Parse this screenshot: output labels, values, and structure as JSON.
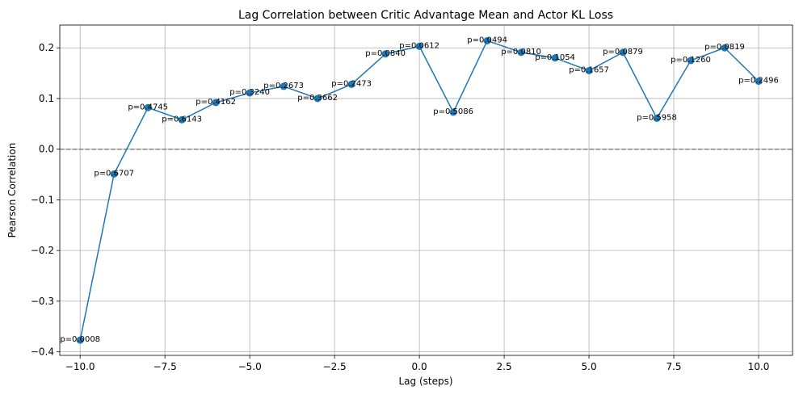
{
  "chart_data": {
    "type": "line",
    "title": "Lag Correlation between Critic Advantage Mean and Actor KL Loss",
    "xlabel": "Lag (steps)",
    "ylabel": "Pearson Correlation",
    "xlim": [
      -10.6,
      11.0
    ],
    "ylim": [
      -0.407,
      0.245
    ],
    "xticks": [
      -10.0,
      -7.5,
      -5.0,
      -2.5,
      0.0,
      2.5,
      5.0,
      7.5,
      10.0
    ],
    "xtick_labels": [
      "−10.0",
      "−7.5",
      "−5.0",
      "−2.5",
      "0.0",
      "2.5",
      "5.0",
      "7.5",
      "10.0"
    ],
    "yticks": [
      -0.4,
      -0.3,
      -0.2,
      -0.1,
      0.0,
      0.1,
      0.2
    ],
    "ytick_labels": [
      "−0.4",
      "−0.3",
      "−0.2",
      "−0.1",
      "0.0",
      "0.1",
      "0.2"
    ],
    "grid": true,
    "reference_line": {
      "y": 0.0,
      "style": "dashed",
      "color": "#808080"
    },
    "line_color": "#1f77b4",
    "series": [
      {
        "x": [
          -10,
          -9,
          -8,
          -7,
          -6,
          -5,
          -4,
          -3,
          -2,
          -1,
          0,
          1,
          2,
          3,
          4,
          5,
          6,
          7,
          8,
          9,
          10
        ],
        "values": [
          -0.377,
          -0.049,
          0.082,
          0.058,
          0.092,
          0.111,
          0.124,
          0.1,
          0.128,
          0.188,
          0.203,
          0.073,
          0.214,
          0.191,
          0.18,
          0.155,
          0.191,
          0.061,
          0.175,
          0.2,
          0.134
        ],
        "annotations": [
          "p=0.0008",
          "p=0.6707",
          "p=0.4745",
          "p=0.6143",
          "p=0.4162",
          "p=0.3240",
          "p=0.2673",
          "p=0.3662",
          "p=0.2473",
          "p=0.0840",
          "p=0.0612",
          "p=0.5086",
          "p=0.0494",
          "p=0.0810",
          "p=0.1054",
          "p=0.1657",
          "p=0.0879",
          "p=0.5958",
          "p=0.1260",
          "p=0.0819",
          "p=0.2496"
        ]
      }
    ]
  }
}
